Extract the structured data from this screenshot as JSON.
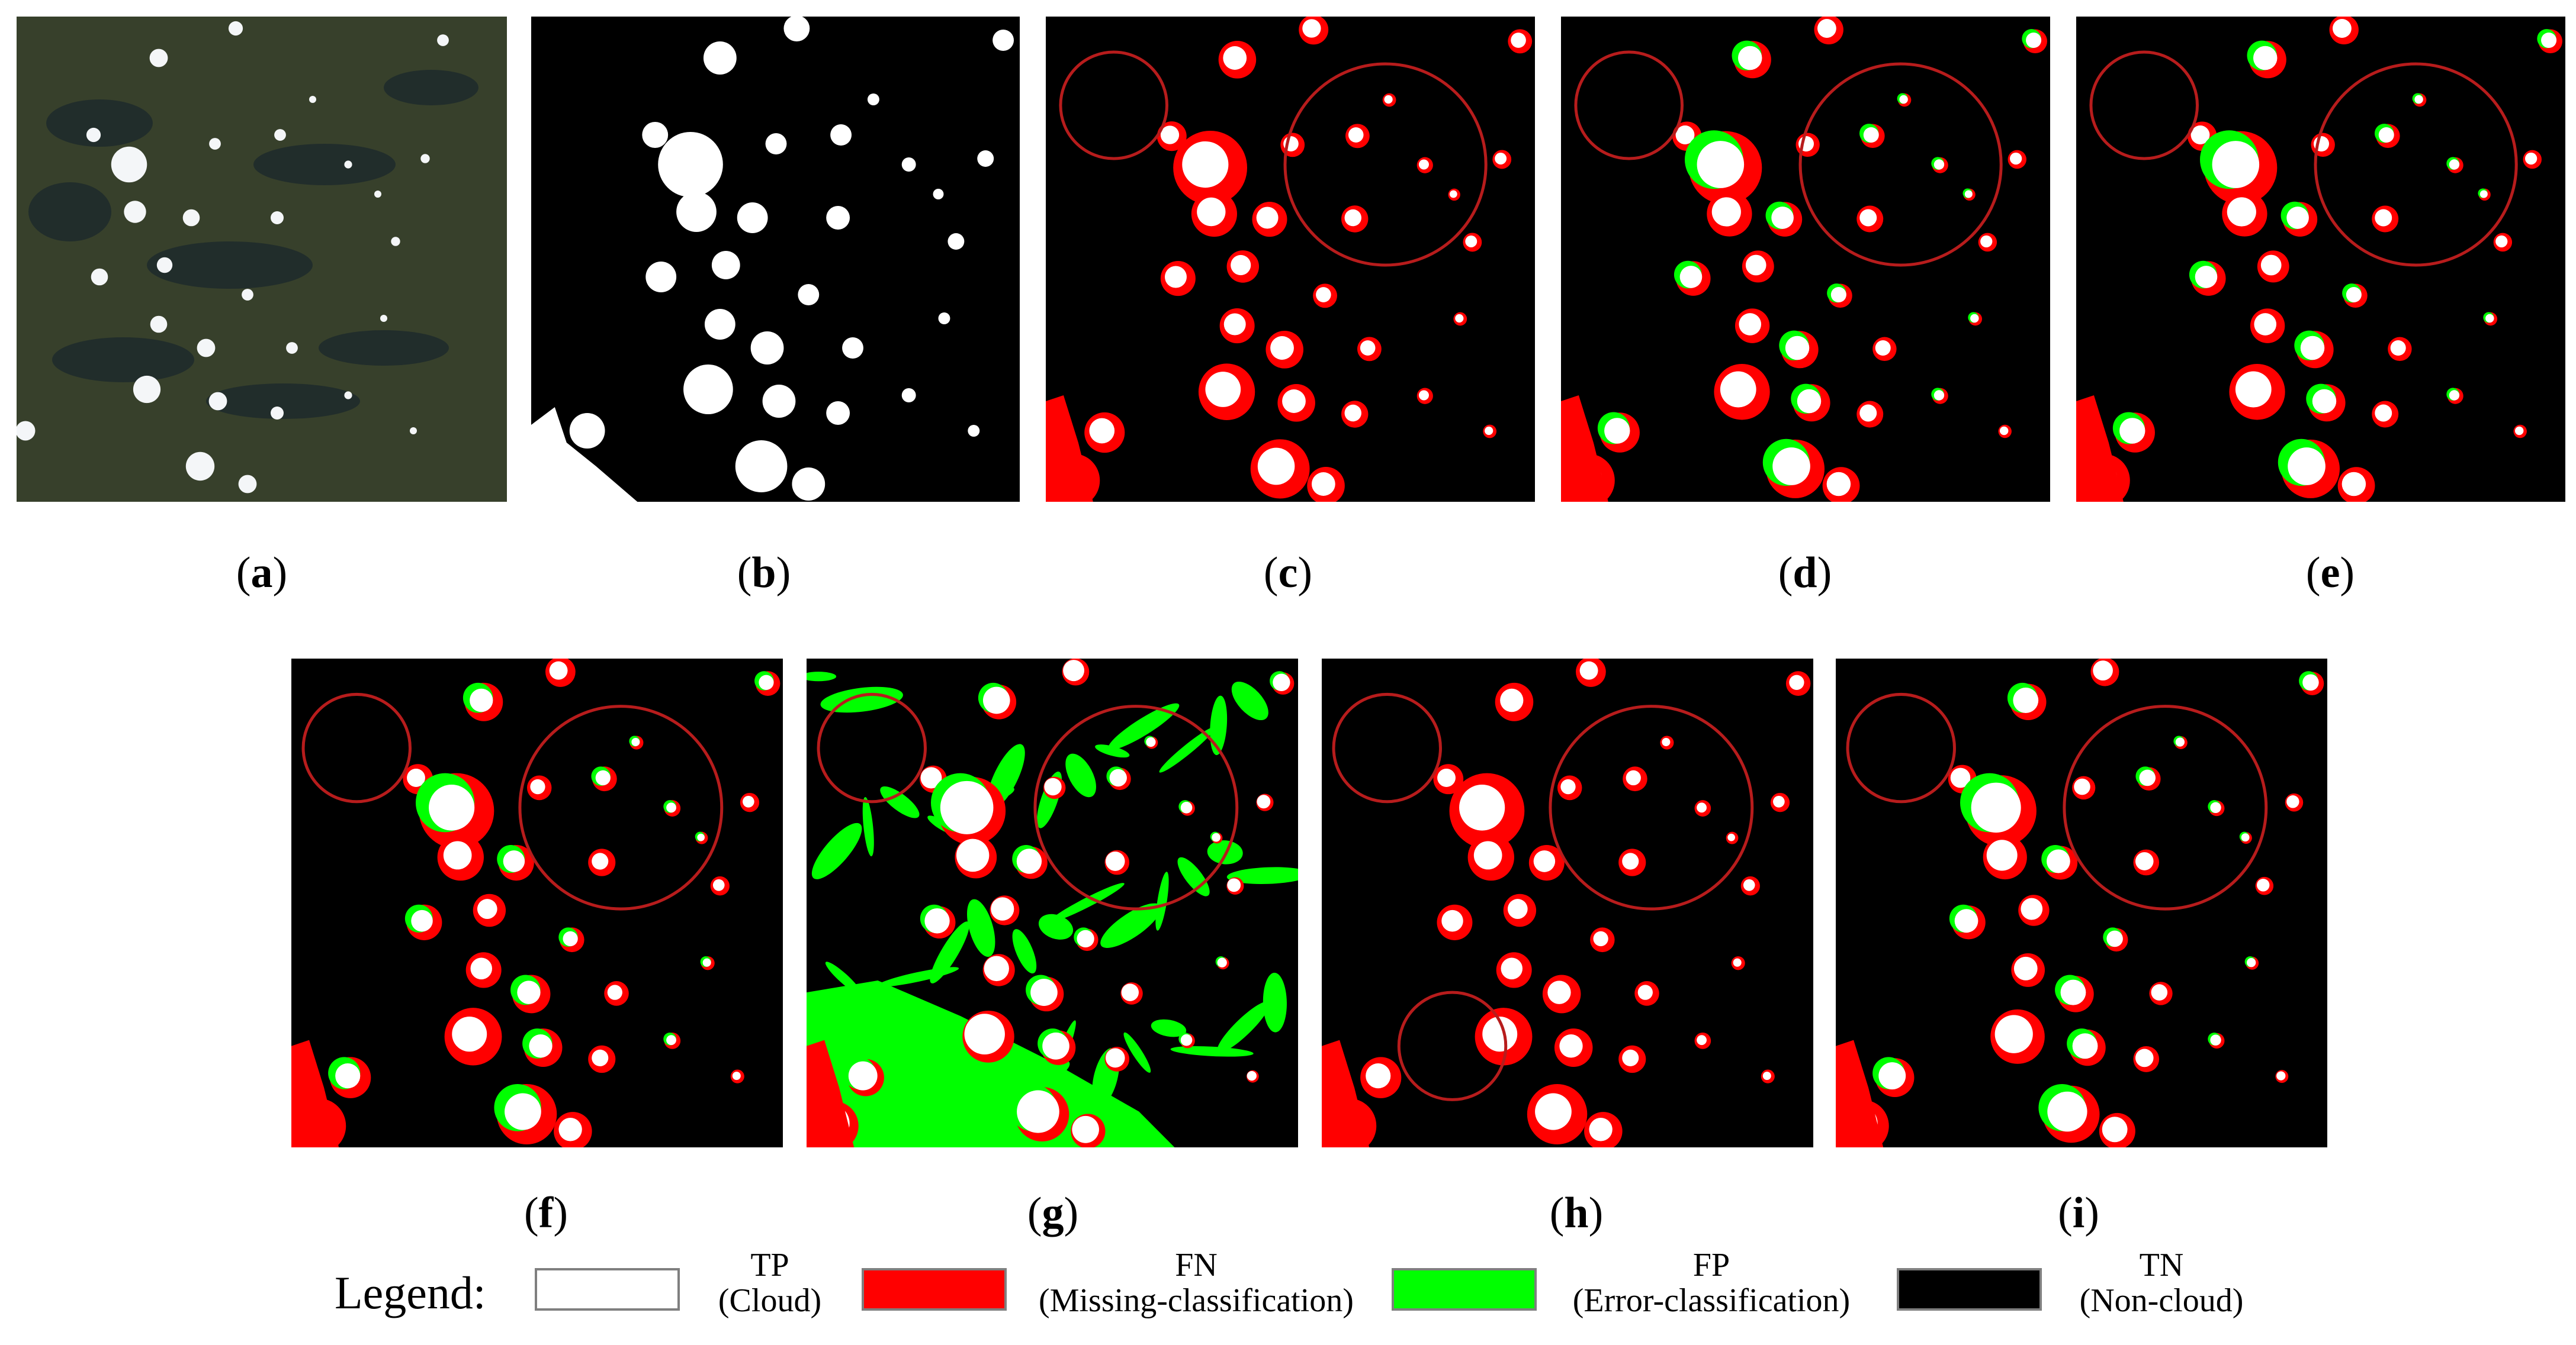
{
  "figure": {
    "panels": [
      {
        "id": "a",
        "label": "a",
        "kind": "rgb"
      },
      {
        "id": "b",
        "label": "b",
        "kind": "mask"
      },
      {
        "id": "c",
        "label": "c",
        "kind": "error-map",
        "circles": 2
      },
      {
        "id": "d",
        "label": "d",
        "kind": "error-map",
        "circles": 2
      },
      {
        "id": "e",
        "label": "e",
        "kind": "error-map",
        "circles": 2
      },
      {
        "id": "f",
        "label": "f",
        "kind": "error-map",
        "circles": 2
      },
      {
        "id": "g",
        "label": "g",
        "kind": "error-map",
        "circles": 2
      },
      {
        "id": "h",
        "label": "h",
        "kind": "error-map",
        "circles": 3
      },
      {
        "id": "i",
        "label": "i",
        "kind": "error-map",
        "circles": 2
      }
    ],
    "paren_open": "(",
    "paren_close": ")"
  },
  "legend": {
    "title": "Legend:",
    "items": [
      {
        "abbr": "TP",
        "desc": "(Cloud)",
        "color": "#ffffff"
      },
      {
        "abbr": "FN",
        "desc": "(Missing-classification)",
        "color": "#ff0000"
      },
      {
        "abbr": "FP",
        "desc": "(Error-classification)",
        "color": "#00ff00"
      },
      {
        "abbr": "TN",
        "desc": "(Non-cloud)",
        "color": "#000000"
      }
    ]
  },
  "colors": {
    "tp": "#ffffff",
    "fn": "#ff0000",
    "fp": "#00ff00",
    "tn": "#000000",
    "circle": "#b71c1c"
  }
}
